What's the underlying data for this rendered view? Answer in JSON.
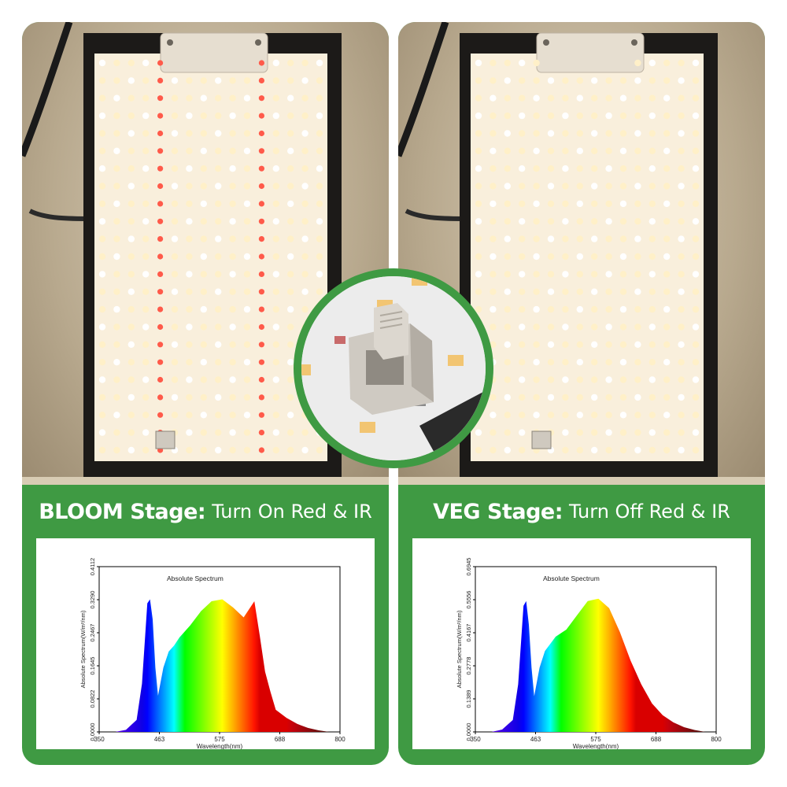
{
  "panels": [
    {
      "stage_label": "BLOOM Stage:",
      "caption_rest": "Turn On Red & IR",
      "red_ir_on": true,
      "chart_data": {
        "type": "area",
        "title": "Absolute Spectrum",
        "xlabel": "Wavelength(nm)",
        "ylabel": "Absolute Spectrum(W/m²/nm)",
        "x_ticks": [
          "350",
          "463",
          "575",
          "688",
          "800"
        ],
        "y_ticks": [
          "0.0000",
          "0.0822",
          "0.1645",
          "0.2467",
          "0.3290",
          "0.4112"
        ],
        "xlim": [
          350,
          800
        ],
        "ylim": [
          0,
          0.4112
        ],
        "x": [
          380,
          400,
          420,
          430,
          440,
          445,
          450,
          455,
          460,
          470,
          480,
          490,
          500,
          520,
          540,
          560,
          580,
          600,
          620,
          630,
          640,
          650,
          660,
          670,
          680,
          700,
          720,
          740,
          760,
          780
        ],
        "y": [
          0.0,
          0.005,
          0.03,
          0.12,
          0.32,
          0.33,
          0.28,
          0.16,
          0.09,
          0.16,
          0.2,
          0.215,
          0.235,
          0.265,
          0.3,
          0.325,
          0.33,
          0.31,
          0.285,
          0.305,
          0.325,
          0.24,
          0.15,
          0.1,
          0.055,
          0.035,
          0.02,
          0.01,
          0.004,
          0.0
        ]
      }
    },
    {
      "stage_label": "VEG Stage:",
      "caption_rest": "Turn Off Red & IR",
      "red_ir_on": false,
      "chart_data": {
        "type": "area",
        "title": "Absolute Spectrum",
        "xlabel": "Wavelength(nm)",
        "ylabel": "Absolute Spectrum(W/m²/nm)",
        "x_ticks": [
          "350",
          "463",
          "575",
          "688",
          "800"
        ],
        "y_ticks": [
          "0.0000",
          "0.1389",
          "0.2778",
          "0.4167",
          "0.5556",
          "0.6945"
        ],
        "xlim": [
          350,
          800
        ],
        "ylim": [
          0,
          0.6945
        ],
        "x": [
          380,
          400,
          420,
          430,
          440,
          445,
          450,
          455,
          460,
          470,
          480,
          490,
          500,
          520,
          540,
          560,
          580,
          600,
          620,
          640,
          660,
          680,
          700,
          720,
          740,
          760,
          780
        ],
        "y": [
          0.0,
          0.01,
          0.05,
          0.2,
          0.53,
          0.55,
          0.45,
          0.27,
          0.15,
          0.27,
          0.34,
          0.37,
          0.4,
          0.43,
          0.49,
          0.55,
          0.56,
          0.52,
          0.42,
          0.3,
          0.2,
          0.12,
          0.07,
          0.04,
          0.02,
          0.008,
          0.0
        ]
      }
    }
  ],
  "colors": {
    "brand_green": "#3f9a43",
    "board_white": "#f3e9d6",
    "led_warm": "#fff0c8",
    "led_red": "#ff5a4a",
    "frame_black": "#1c1a18"
  }
}
